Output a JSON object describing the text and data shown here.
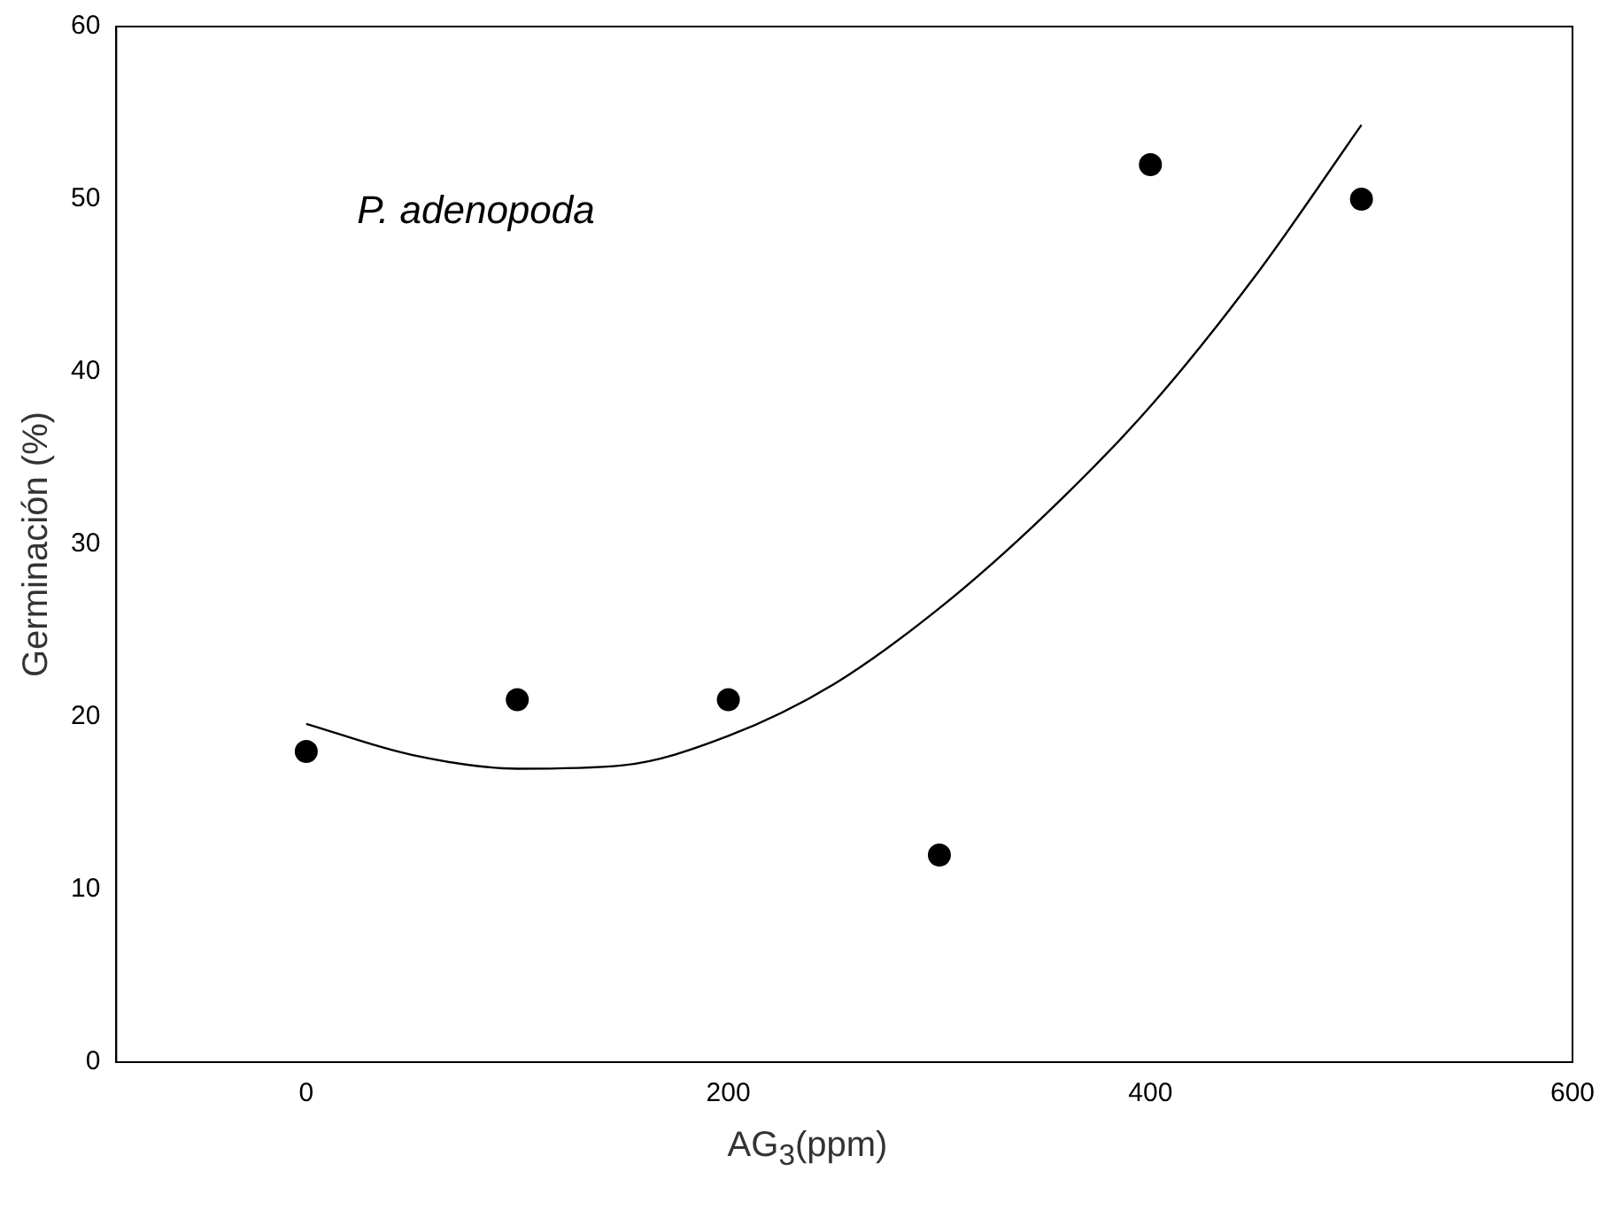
{
  "chart_data": {
    "type": "scatter",
    "xlabel": "AG$_{3}$(ppm)",
    "ylabel": "Germinación (%)",
    "annotations": [
      "P. adenopoda"
    ],
    "xlim": [
      -90,
      600
    ],
    "xticks": [
      0,
      200,
      400,
      600
    ],
    "ylim": [
      0,
      60
    ],
    "yticks": [
      0,
      10,
      20,
      30,
      40,
      50,
      60
    ],
    "grid": false,
    "legend": false,
    "marker": "circle",
    "series": [
      {
        "color": "#000000",
        "x": [
          0,
          100,
          200,
          300,
          400,
          500
        ],
        "values": [
          18,
          21,
          21,
          12,
          52,
          50
        ]
      },
      {
        "type": "line",
        "color": "#000000",
        "marker": "none",
        "x": [
          0,
          50,
          100,
          150,
          200,
          250,
          300,
          350,
          400,
          450,
          500
        ],
        "values": [
          19.6,
          17.8,
          17.0,
          17.2,
          18.9,
          21.9,
          26.3,
          31.7,
          38.0,
          45.6,
          54.3
        ]
      }
    ]
  }
}
